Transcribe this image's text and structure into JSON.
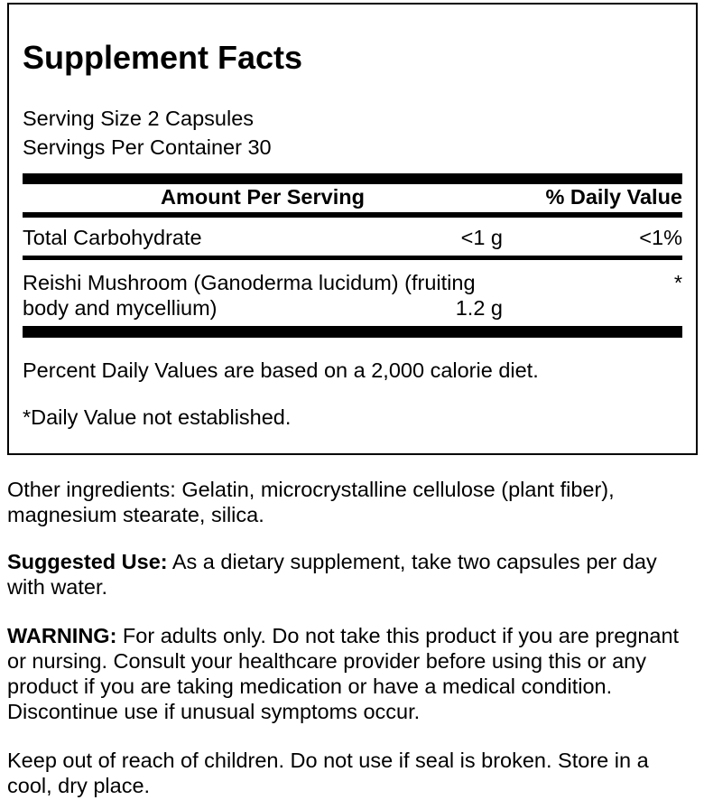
{
  "colors": {
    "text": "#000000",
    "background": "#ffffff",
    "divider": "#000000"
  },
  "supplement_facts": {
    "title": "Supplement Facts",
    "serving_size": "Serving Size 2 Capsules",
    "servings_per_container": "Servings Per Container 30",
    "columns": {
      "amount_header": "Amount Per Serving",
      "daily_value_header": "% Daily Value"
    },
    "rows": [
      {
        "name": "Total Carbohydrate",
        "amount": "<1 g",
        "daily_value": "<1%"
      },
      {
        "name": "Reishi Mushroom (Ganoderma lucidum) (fruiting body and mycellium)",
        "amount": "1.2 g",
        "daily_value": "*"
      }
    ],
    "footnotes": {
      "daily_values_note": "Percent Daily Values are based on a 2,000 calorie diet.",
      "asterisk_note": "*Daily Value not established."
    }
  },
  "details": {
    "other_ingredients": "Other ingredients: Gelatin, microcrystalline cellulose (plant fiber), magnesium stearate, silica.",
    "suggested_use": {
      "label": "Suggested Use:",
      "text": " As a dietary supplement, take two capsules per day with water."
    },
    "warning": {
      "label": "WARNING:",
      "text": " For adults only. Do not take this product if you are pregnant or nursing. Consult your healthcare provider before using this or any product if you are taking medication or have a medical condition. Discontinue use if unusual symptoms occur."
    },
    "storage": "Keep out of reach of children. Do not use if seal is broken. Store in a cool, dry place."
  }
}
